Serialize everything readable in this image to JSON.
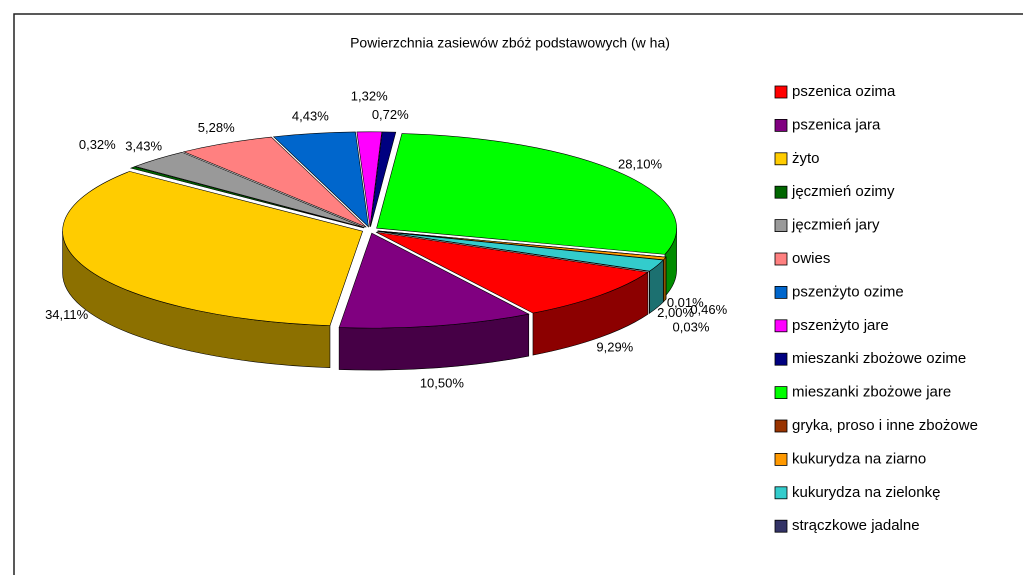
{
  "chart_data": {
    "type": "pie",
    "title": "Powierzchnia zasiewów zbóż podstawowych (w ha)",
    "categories": [
      "pszenica ozima",
      "pszenica jara",
      "żyto",
      "jęczmień ozimy",
      "jęczmień jary",
      "owies",
      "pszenżyto ozime",
      "pszenżyto jare",
      "mieszanki zbożowe ozime",
      "mieszanki zbożowe jare",
      "gryka, proso i inne zbożowe",
      "kukurydza na ziarno",
      "kukurydza na zielonkę",
      "strączkowe jadalne"
    ],
    "values": [
      9.29,
      10.5,
      34.11,
      0.32,
      3.43,
      5.28,
      4.43,
      1.32,
      0.72,
      28.1,
      0.01,
      0.46,
      2.0,
      0.03
    ],
    "value_labels": [
      "9,29%",
      "10,50%",
      "34,11%",
      "0,32%",
      "3,43%",
      "5,28%",
      "4,43%",
      "1,32%",
      "0,72%",
      "28,10%",
      "0,01%",
      "0,46%",
      "2,00%",
      "0,03%"
    ],
    "colors": [
      "#ff0000",
      "#800080",
      "#ffcc00",
      "#006600",
      "#999999",
      "#ff8080",
      "#0066cc",
      "#ff00ff",
      "#000080",
      "#00ff00",
      "#993300",
      "#ff9900",
      "#33cccc",
      "#333366"
    ],
    "legend": "right"
  }
}
